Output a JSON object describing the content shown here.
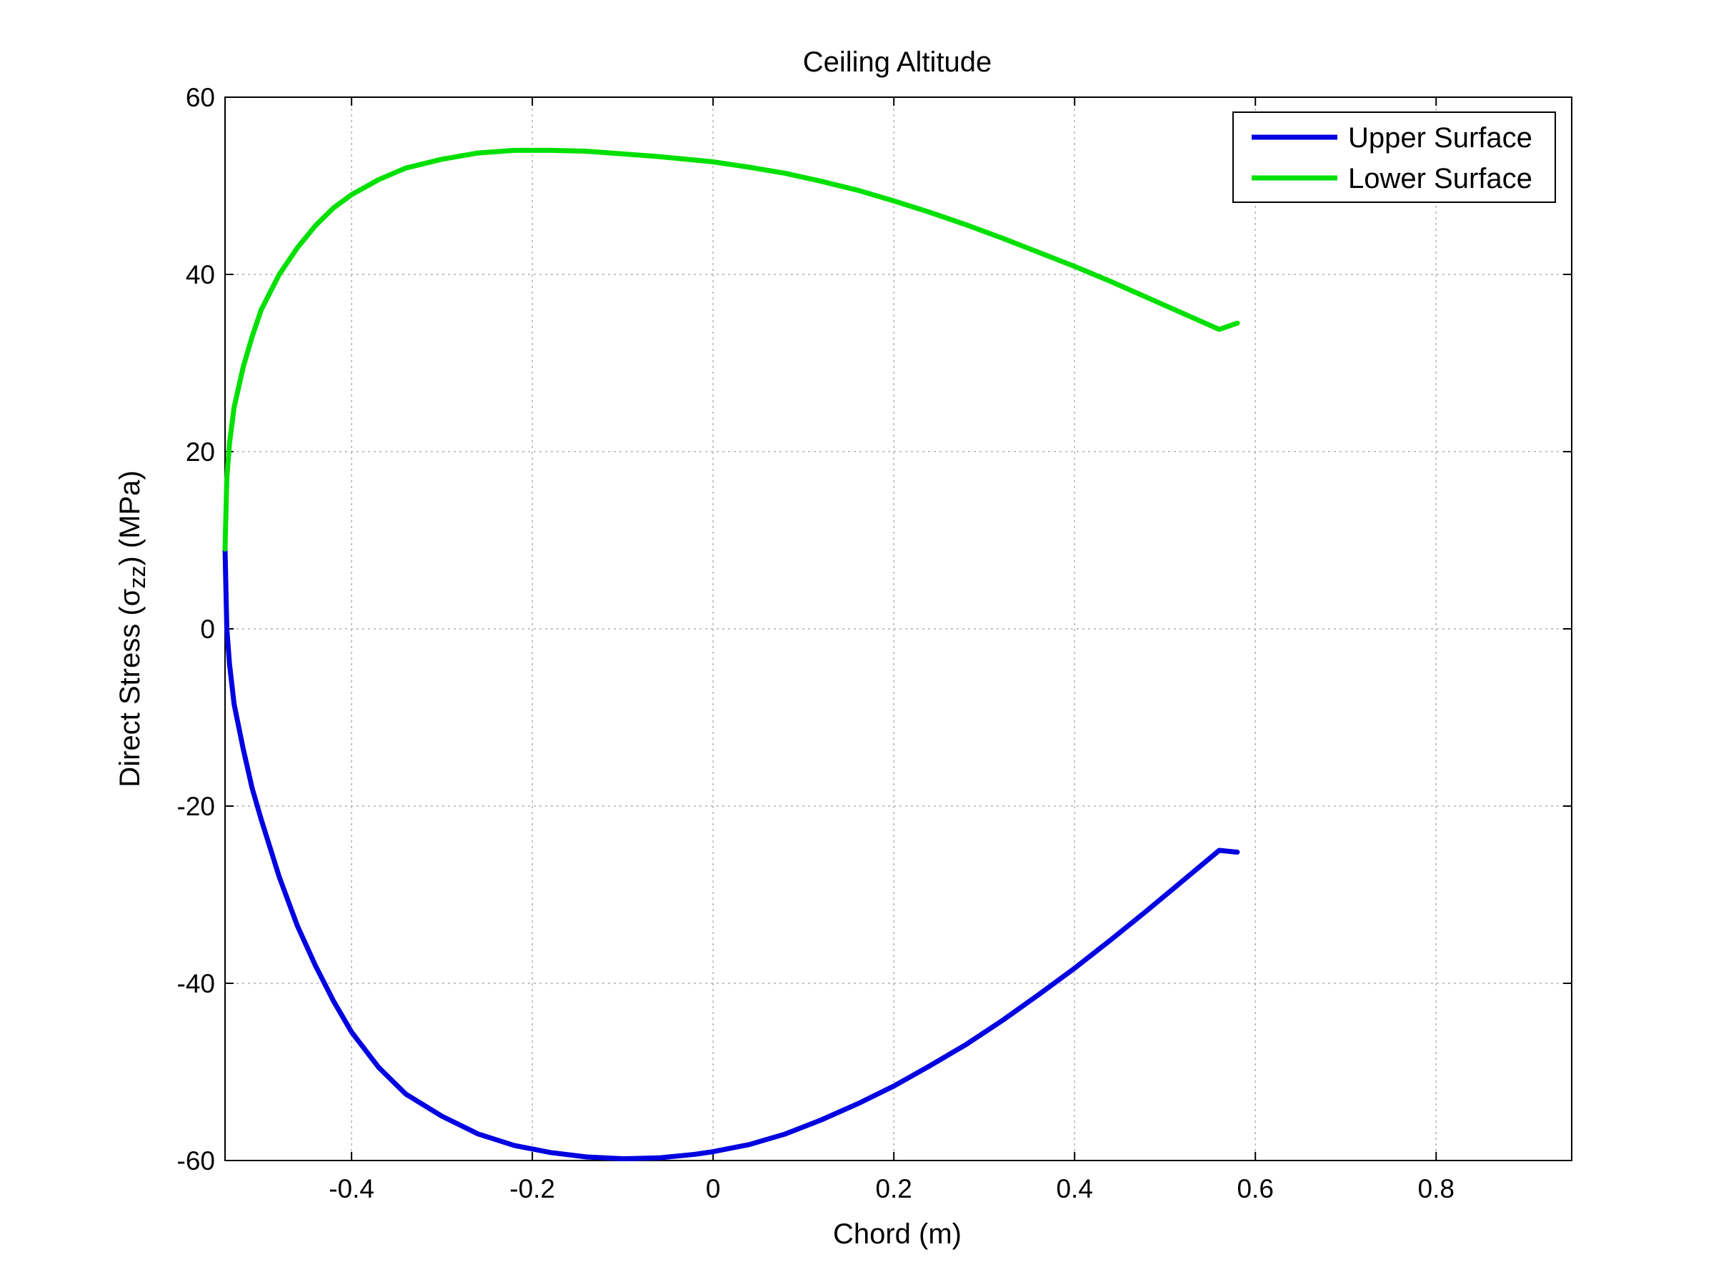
{
  "chart_data": {
    "type": "line",
    "title": "Ceiling Altitude",
    "xlabel": "Chord (m)",
    "ylabel": {
      "prefix": "Direct Stress (",
      "symbol": "σ",
      "subscript": "zz",
      "suffix": ") (MPa)"
    },
    "xlim": [
      -0.54,
      0.95
    ],
    "ylim": [
      -60,
      60
    ],
    "xticks": [
      -0.4,
      -0.2,
      0,
      0.2,
      0.4,
      0.6,
      0.8
    ],
    "xtick_labels": [
      "-0.4",
      "-0.2",
      "0",
      "0.2",
      "0.4",
      "0.6",
      "0.8"
    ],
    "yticks": [
      -60,
      -40,
      -20,
      0,
      20,
      40,
      60
    ],
    "ytick_labels": [
      "-60",
      "-40",
      "-20",
      "0",
      "20",
      "40",
      "60"
    ],
    "grid": true,
    "legend_position": "top-right",
    "series": [
      {
        "name": "Upper Surface",
        "color": "#0000e0",
        "x": [
          -0.54,
          -0.538,
          -0.535,
          -0.53,
          -0.52,
          -0.51,
          -0.5,
          -0.48,
          -0.46,
          -0.44,
          -0.42,
          -0.4,
          -0.37,
          -0.34,
          -0.3,
          -0.26,
          -0.22,
          -0.18,
          -0.14,
          -0.1,
          -0.06,
          -0.02,
          0.0,
          0.04,
          0.08,
          0.12,
          0.16,
          0.2,
          0.24,
          0.28,
          0.32,
          0.36,
          0.4,
          0.44,
          0.48,
          0.52,
          0.56,
          0.58
        ],
        "y": [
          9.0,
          0.0,
          -4.0,
          -8.5,
          -13.5,
          -18.0,
          -21.5,
          -28.0,
          -33.5,
          -38.0,
          -42.0,
          -45.5,
          -49.5,
          -52.5,
          -55.0,
          -57.0,
          -58.3,
          -59.1,
          -59.6,
          -59.8,
          -59.7,
          -59.3,
          -59.0,
          -58.2,
          -57.0,
          -55.4,
          -53.6,
          -51.6,
          -49.3,
          -46.9,
          -44.2,
          -41.3,
          -38.3,
          -35.1,
          -31.8,
          -28.4,
          -25.0,
          -25.2
        ]
      },
      {
        "name": "Lower Surface",
        "color": "#00e000",
        "x": [
          -0.54,
          -0.538,
          -0.535,
          -0.53,
          -0.52,
          -0.51,
          -0.5,
          -0.48,
          -0.46,
          -0.44,
          -0.42,
          -0.4,
          -0.37,
          -0.34,
          -0.3,
          -0.26,
          -0.22,
          -0.18,
          -0.14,
          -0.1,
          -0.06,
          -0.02,
          0.0,
          0.04,
          0.08,
          0.12,
          0.16,
          0.2,
          0.24,
          0.28,
          0.32,
          0.36,
          0.4,
          0.44,
          0.48,
          0.52,
          0.56,
          0.58
        ],
        "y": [
          9.0,
          17.0,
          21.0,
          25.0,
          29.5,
          33.0,
          36.0,
          40.0,
          43.0,
          45.5,
          47.5,
          49.0,
          50.7,
          52.0,
          53.0,
          53.7,
          54.0,
          54.0,
          53.9,
          53.6,
          53.3,
          52.9,
          52.7,
          52.1,
          51.4,
          50.5,
          49.5,
          48.3,
          47.0,
          45.6,
          44.1,
          42.5,
          40.9,
          39.2,
          37.4,
          35.6,
          33.8,
          34.5
        ]
      }
    ]
  }
}
